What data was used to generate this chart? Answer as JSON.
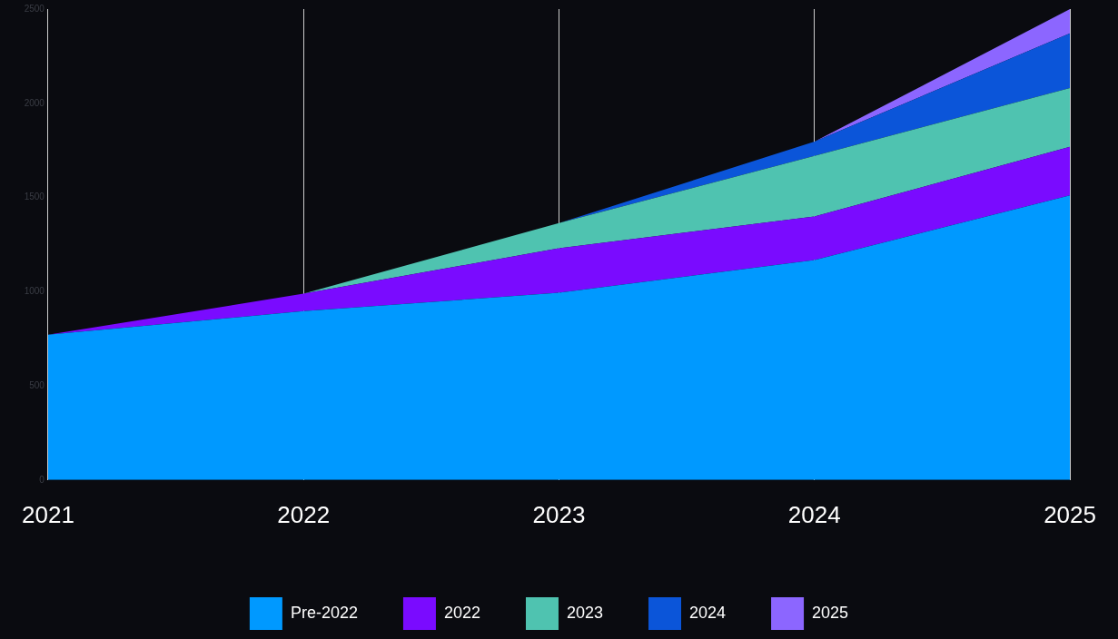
{
  "chart_data": {
    "type": "area",
    "stacked": true,
    "categories": [
      "2021",
      "2022",
      "2023",
      "2024",
      "2025"
    ],
    "series": [
      {
        "name": "Pre-2022",
        "color": "#0099ff",
        "values": [
          771,
          896,
          994,
          1168,
          1511
        ]
      },
      {
        "name": "2022",
        "color": "#7a0bff",
        "values": [
          0,
          93,
          236,
          231,
          258
        ]
      },
      {
        "name": "2023",
        "color": "#4fc3b0",
        "values": [
          0,
          0,
          134,
          321,
          312
        ]
      },
      {
        "name": "2024",
        "color": "#0b55d9",
        "values": [
          0,
          0,
          0,
          76,
          290
        ]
      },
      {
        "name": "2025",
        "color": "#8c66ff",
        "values": [
          0,
          0,
          0,
          0,
          129
        ]
      }
    ],
    "ylim": [
      0,
      2500
    ],
    "yticks": [
      0,
      500,
      1000,
      1500,
      2000,
      2500
    ],
    "grid": "x",
    "legend": "bottom"
  }
}
